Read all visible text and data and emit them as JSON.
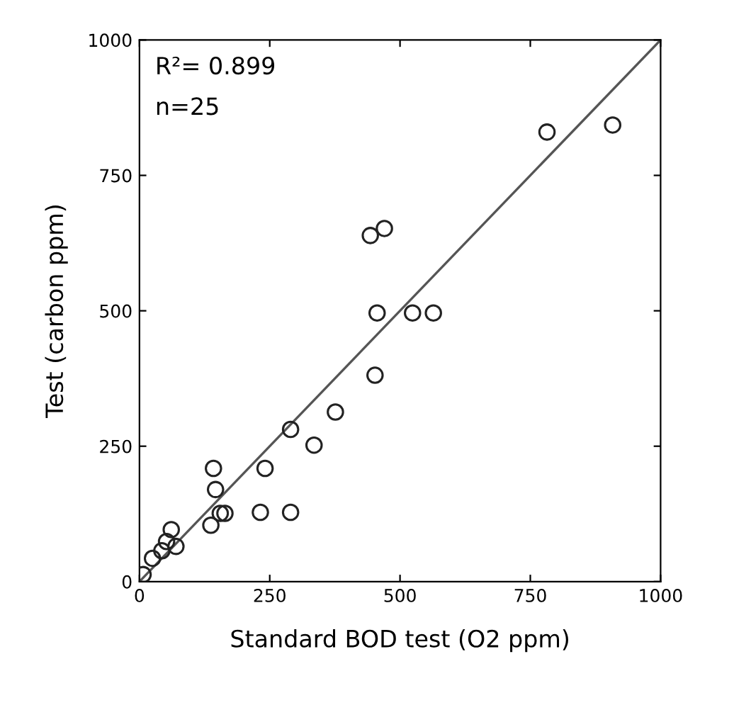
{
  "chart_data": {
    "type": "scatter",
    "xlabel": "Standard BOD test (O2 ppm)",
    "ylabel": "Test (carbon ppm)",
    "annotations": [
      "R²= 0.899",
      "n=25"
    ],
    "xlim": [
      0,
      1000
    ],
    "ylim": [
      0,
      1000
    ],
    "xticks": [
      0,
      250,
      500,
      750,
      1000
    ],
    "yticks": [
      0,
      250,
      500,
      750,
      1000
    ],
    "grid": false,
    "series": [
      {
        "marker": "circle",
        "color": "#222222",
        "x": [
          782,
          908,
          443,
          470,
          456,
          524,
          564,
          452,
          376,
          290,
          335,
          241,
          142,
          146,
          155,
          137,
          164,
          232,
          290,
          61,
          52,
          70,
          43,
          25,
          7
        ],
        "values": [
          830,
          843,
          639,
          652,
          496,
          496,
          496,
          381,
          313,
          281,
          252,
          209,
          209,
          170,
          126,
          104,
          126,
          128,
          128,
          96,
          74,
          65,
          57,
          43,
          13
        ]
      },
      {
        "type": "line",
        "color": "#555555",
        "x": [
          0,
          1000
        ],
        "values": [
          0,
          1000
        ]
      }
    ]
  }
}
